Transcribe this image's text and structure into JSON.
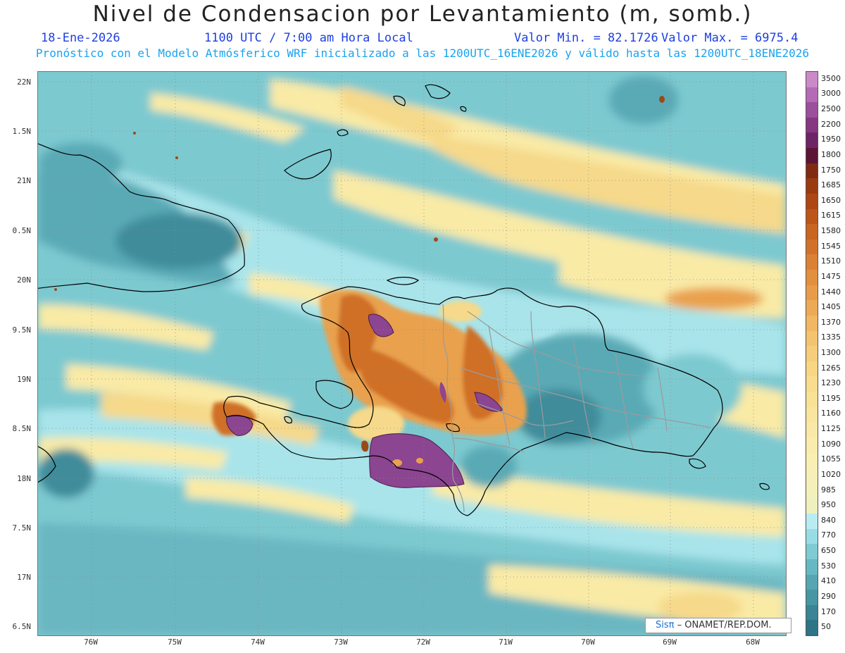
{
  "header": {
    "title": "Nivel de Condensacion por Levantamiento (m, somb.)",
    "date": "18-Ene-2026",
    "time": "1100 UTC / 7:00 am Hora Local",
    "min_label": "Valor Min. = 82.1726",
    "max_label": "Valor Max. = 6975.4",
    "model_line": "Pronóstico con el Modelo Atmósferico WRF inicializado a las 1200UTC_16ENE2026 y válido hasta las  1200UTC_18ENE2026"
  },
  "axes": {
    "lat_labels": [
      "22N",
      "1.5N",
      "21N",
      "0.5N",
      "20N",
      "9.5N",
      "19N",
      "8.5N",
      "18N",
      "7.5N",
      "17N",
      "6.5N"
    ],
    "lon_labels": [
      "76W",
      "75W",
      "74W",
      "73W",
      "72W",
      "71W",
      "70W",
      "69W",
      "68W"
    ]
  },
  "colorbar": {
    "labels": [
      "3500",
      "3000",
      "2500",
      "2200",
      "1950",
      "1800",
      "1750",
      "1685",
      "1650",
      "1615",
      "1580",
      "1545",
      "1510",
      "1475",
      "1440",
      "1405",
      "1370",
      "1335",
      "1300",
      "1265",
      "1230",
      "1195",
      "1160",
      "1125",
      "1090",
      "1055",
      "1020",
      "985",
      "950",
      "840",
      "770",
      "650",
      "530",
      "410",
      "290",
      "170",
      "50"
    ],
    "colors": [
      "#c98ac7",
      "#b46ab4",
      "#9c4f9a",
      "#86377f",
      "#6e2566",
      "#5c1535",
      "#7f2a13",
      "#9a3a11",
      "#ad4614",
      "#bd5519",
      "#c96421",
      "#d2722a",
      "#db8135",
      "#e28f3f",
      "#e89c4a",
      "#edaa56",
      "#f1b763",
      "#f4c36f",
      "#f6cd7a",
      "#f8d684",
      "#f9dc8d",
      "#f9e196",
      "#f9e59e",
      "#fae9a6",
      "#faecad",
      "#f9efb3",
      "#f6f0b8",
      "#f3f0bb",
      "#eef0be",
      "#b9ecf2",
      "#98dde6",
      "#7ecbd3",
      "#66b8c2",
      "#55a6b2",
      "#4796a3",
      "#3a8494",
      "#2d7486"
    ]
  },
  "credit": {
    "logo": "Sisπ",
    "text": " – ONAMET/REP.DOM."
  },
  "map": {
    "field_colors": {
      "ocean_base": "#7dc9d0",
      "light_cyan": "#a8e4ea",
      "teal": "#5aaab6",
      "dark_teal": "#3f8c9b",
      "pale_yellow": "#f9eaa6",
      "yellow": "#f6d98a",
      "orange": "#e9a14e",
      "dark_orange": "#cf6f25",
      "brown": "#9a4a18",
      "purple": "#8c4591",
      "coast": "#000000",
      "borders": "#9b9b9b"
    }
  }
}
